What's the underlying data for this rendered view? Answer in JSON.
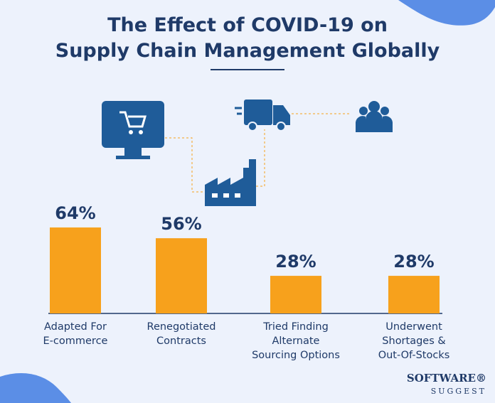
{
  "chart_data": {
    "type": "bar",
    "title_lines": [
      "The Effect of COVID-19 on",
      "Supply Chain Management Globally"
    ],
    "categories": [
      "Adapted For\nE-commerce",
      "Renegotiated\nContracts",
      "Tried Finding\nAlternate\nSourcing Options",
      "Underwent\nShortages &\nOut-Of-Stocks"
    ],
    "values": [
      64,
      56,
      28,
      28
    ],
    "value_labels": [
      "64%",
      "56%",
      "28%",
      "28%"
    ],
    "color": "#f7a11c"
  },
  "logo": {
    "line1": "SOFTWARE®",
    "line2": "SUGGEST"
  }
}
